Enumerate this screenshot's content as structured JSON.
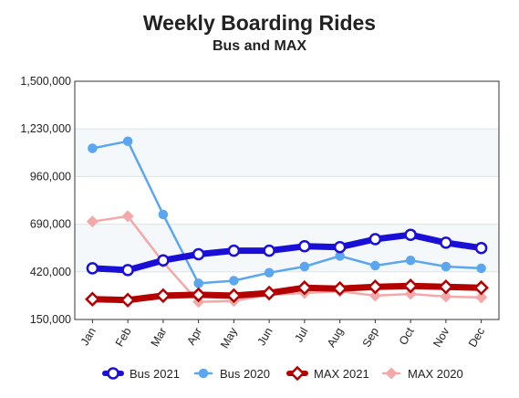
{
  "chart_data": {
    "type": "line",
    "title": "Weekly Boarding Rides",
    "subtitle": "Bus and MAX",
    "categories": [
      "Jan",
      "Feb",
      "Mar",
      "Apr",
      "May",
      "Jun",
      "Jul",
      "Aug",
      "Sep",
      "Oct",
      "Nov",
      "Dec"
    ],
    "ylim": [
      150000,
      1500000
    ],
    "yticks": [
      150000,
      420000,
      690000,
      960000,
      1230000,
      1500000
    ],
    "ytick_labels": [
      "150,000",
      "420,000",
      "690,000",
      "960,000",
      "1,230,000",
      "1,500,000"
    ],
    "grid": true,
    "legend_position": "bottom",
    "series": [
      {
        "name": "Bus 2021",
        "color": "#1a0fd6",
        "marker": "circle",
        "line_weight": "thick",
        "values": [
          440000,
          430000,
          485000,
          520000,
          540000,
          540000,
          565000,
          560000,
          605000,
          630000,
          585000,
          555000
        ]
      },
      {
        "name": "Bus 2020",
        "color": "#5aa7f0",
        "marker": "circle",
        "line_weight": "thin",
        "values": [
          1120000,
          1160000,
          745000,
          355000,
          370000,
          415000,
          450000,
          510000,
          455000,
          485000,
          450000,
          440000
        ]
      },
      {
        "name": "MAX 2021",
        "color": "#b30000",
        "marker": "diamond",
        "line_weight": "thick",
        "values": [
          265000,
          260000,
          285000,
          290000,
          285000,
          300000,
          330000,
          325000,
          335000,
          340000,
          335000,
          330000
        ]
      },
      {
        "name": "MAX 2020",
        "color": "#f3a9a9",
        "marker": "diamond",
        "line_weight": "thin",
        "values": [
          705000,
          735000,
          475000,
          250000,
          255000,
          290000,
          300000,
          310000,
          285000,
          295000,
          280000,
          275000
        ]
      }
    ]
  }
}
